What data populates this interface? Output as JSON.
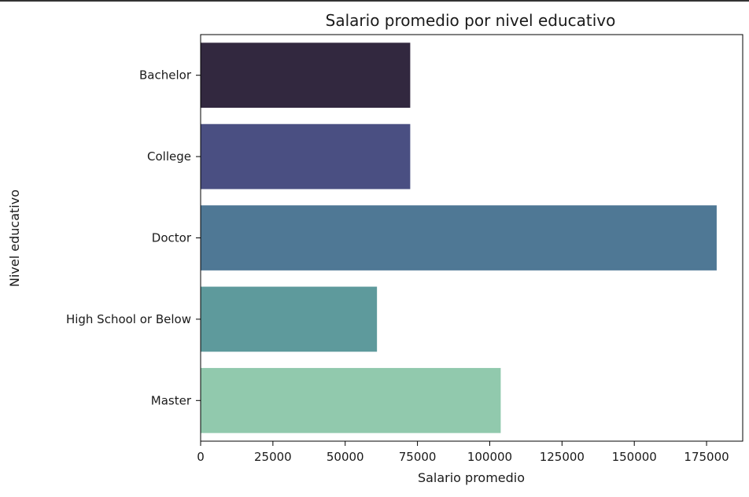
{
  "chart_data": {
    "type": "bar",
    "orientation": "horizontal",
    "title": "Salario promedio por nivel educativo",
    "xlabel": "Salario promedio",
    "ylabel": "Nivel educativo",
    "categories": [
      "Bachelor",
      "College",
      "Doctor",
      "High School or Below",
      "Master"
    ],
    "values": [
      72500,
      72500,
      178500,
      61000,
      103800
    ],
    "colors": [
      "#32283f",
      "#4a4f82",
      "#4f7895",
      "#5e9a9c",
      "#91c9ad"
    ],
    "xlim": [
      0,
      187500
    ],
    "xticks": [
      0,
      25000,
      50000,
      75000,
      100000,
      125000,
      150000,
      175000
    ],
    "xtick_labels": [
      "0",
      "25000",
      "50000",
      "75000",
      "100000",
      "125000",
      "150000",
      "175000"
    ],
    "grid": false,
    "legend": false
  }
}
